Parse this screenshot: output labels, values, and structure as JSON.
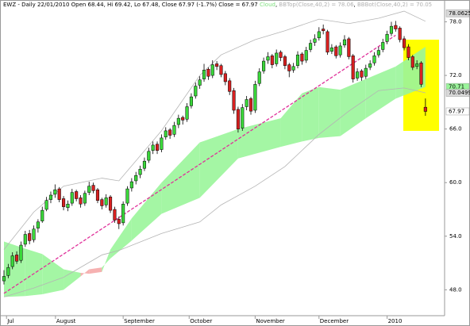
{
  "chart_data": {
    "type": "candlestick",
    "title": "EWZ - Daily 22/01/2010 Open 68.44, Hi 69.42, Lo 67.48, Close 67.97 (-1.7%) Close = 67.97",
    "legend": [
      "Cloud",
      "BBTop(Close,40,2) = 78.06",
      "BBBot(Close,40,2) = 70.05"
    ],
    "colors": {
      "up": "#3ad83a",
      "down": "#d82020",
      "cloud_up": "#9af59a",
      "cloud_down": "#f5a8a8",
      "bollinger": "#b4b4b4",
      "trendline": "#e0309a"
    },
    "xlim": [
      -0.93,
      103.5
    ],
    "xticks": [
      {
        "value": 0.6,
        "label": "Jul"
      },
      {
        "value": 12.1,
        "label": "August"
      },
      {
        "value": 28,
        "label": "September"
      },
      {
        "value": 43.5,
        "label": "October"
      },
      {
        "value": 59,
        "label": "November"
      },
      {
        "value": 74,
        "label": "December"
      },
      {
        "value": 90,
        "label": "2010"
      }
    ],
    "ylim": [
      45.1,
      80.0
    ],
    "yticks": [
      {
        "value": 48,
        "label": "48.0"
      },
      {
        "value": 54,
        "label": "54.0"
      },
      {
        "value": 60,
        "label": "60.0"
      },
      {
        "value": 66,
        "label": "66.0"
      },
      {
        "value": 72,
        "label": "72.0"
      },
      {
        "value": 78,
        "label": "78.0"
      }
    ],
    "ohlc": [
      [
        49.0,
        50.2,
        48.6,
        49.5
      ],
      [
        49.6,
        50.9,
        49.3,
        50.5
      ],
      [
        50.6,
        52.2,
        50.3,
        51.8
      ],
      [
        51.9,
        52.3,
        50.9,
        51.2
      ],
      [
        51.3,
        53.4,
        51.0,
        53.0
      ],
      [
        53.1,
        54.6,
        52.8,
        54.2
      ],
      [
        54.3,
        54.7,
        53.1,
        53.5
      ],
      [
        53.6,
        55.2,
        53.3,
        54.8
      ],
      [
        54.9,
        55.9,
        54.4,
        55.6
      ],
      [
        55.7,
        57.3,
        55.5,
        56.9
      ],
      [
        57.0,
        58.4,
        56.8,
        58.0
      ],
      [
        58.1,
        59.0,
        57.7,
        58.6
      ],
      [
        58.7,
        59.8,
        58.3,
        59.2
      ],
      [
        59.3,
        59.5,
        57.8,
        58.1
      ],
      [
        58.2,
        58.5,
        56.9,
        57.3
      ],
      [
        57.2,
        58.0,
        56.8,
        57.6
      ],
      [
        57.7,
        59.3,
        57.4,
        58.9
      ],
      [
        59.0,
        59.2,
        57.9,
        58.2
      ],
      [
        58.3,
        58.6,
        57.2,
        57.6
      ],
      [
        57.7,
        59.1,
        57.4,
        58.8
      ],
      [
        58.9,
        60.1,
        58.6,
        59.6
      ],
      [
        59.7,
        60.0,
        58.8,
        59.1
      ],
      [
        59.2,
        59.4,
        57.7,
        58.0
      ],
      [
        58.1,
        58.3,
        57.0,
        57.4
      ],
      [
        57.5,
        58.7,
        57.2,
        58.3
      ],
      [
        58.4,
        58.6,
        56.6,
        56.9
      ],
      [
        57.0,
        57.3,
        55.5,
        55.8
      ],
      [
        55.9,
        56.2,
        54.8,
        55.4
      ],
      [
        55.5,
        57.9,
        55.2,
        57.6
      ],
      [
        57.7,
        59.6,
        57.4,
        59.3
      ],
      [
        59.4,
        60.5,
        59.0,
        60.1
      ],
      [
        60.2,
        61.2,
        59.8,
        60.8
      ],
      [
        60.9,
        61.9,
        60.5,
        61.5
      ],
      [
        61.6,
        62.8,
        61.3,
        62.4
      ],
      [
        62.5,
        63.9,
        62.2,
        63.5
      ],
      [
        63.6,
        64.6,
        63.2,
        64.2
      ],
      [
        64.3,
        64.6,
        63.2,
        63.6
      ],
      [
        63.7,
        65.4,
        63.4,
        65.0
      ],
      [
        65.1,
        66.2,
        64.8,
        65.8
      ],
      [
        65.9,
        66.1,
        64.9,
        65.3
      ],
      [
        65.4,
        66.8,
        65.1,
        66.4
      ],
      [
        66.5,
        67.6,
        66.1,
        67.2
      ],
      [
        67.3,
        67.5,
        66.5,
        67.0
      ],
      [
        67.1,
        68.9,
        66.8,
        68.5
      ],
      [
        68.6,
        70.0,
        68.3,
        69.6
      ],
      [
        69.7,
        71.2,
        69.4,
        70.8
      ],
      [
        70.9,
        71.9,
        70.5,
        71.5
      ],
      [
        71.6,
        73.3,
        71.3,
        72.6
      ],
      [
        72.7,
        72.9,
        71.5,
        71.9
      ],
      [
        72.0,
        73.7,
        71.7,
        73.2
      ],
      [
        73.3,
        73.6,
        72.6,
        73.0
      ],
      [
        73.1,
        73.3,
        71.8,
        72.1
      ],
      [
        72.2,
        72.5,
        70.9,
        71.3
      ],
      [
        71.4,
        71.7,
        69.8,
        70.2
      ],
      [
        70.3,
        70.6,
        67.7,
        68.1
      ],
      [
        68.2,
        68.5,
        65.6,
        66.0
      ],
      [
        66.1,
        68.8,
        65.8,
        68.4
      ],
      [
        68.5,
        69.7,
        68.1,
        69.3
      ],
      [
        69.4,
        69.6,
        67.6,
        68.0
      ],
      [
        68.1,
        71.4,
        67.8,
        71.0
      ],
      [
        71.1,
        72.8,
        70.8,
        72.4
      ],
      [
        72.5,
        74.0,
        72.2,
        73.6
      ],
      [
        73.7,
        74.6,
        73.3,
        74.1
      ],
      [
        74.2,
        74.4,
        72.8,
        73.2
      ],
      [
        73.3,
        74.9,
        73.0,
        74.5
      ],
      [
        74.6,
        74.8,
        73.6,
        74.0
      ],
      [
        74.1,
        74.3,
        72.7,
        73.1
      ],
      [
        73.2,
        73.4,
        71.8,
        72.5
      ],
      [
        72.6,
        73.4,
        72.3,
        73.0
      ],
      [
        73.1,
        74.7,
        72.8,
        74.3
      ],
      [
        74.4,
        74.6,
        73.2,
        73.6
      ],
      [
        73.7,
        75.2,
        73.4,
        74.8
      ],
      [
        74.9,
        76.0,
        74.6,
        75.6
      ],
      [
        75.7,
        76.6,
        75.3,
        76.1
      ],
      [
        76.2,
        77.4,
        75.9,
        76.9
      ],
      [
        77.2,
        77.7,
        76.6,
        77.0
      ],
      [
        76.9,
        77.1,
        74.3,
        74.6
      ],
      [
        74.7,
        75.5,
        74.4,
        75.1
      ],
      [
        75.2,
        75.4,
        73.9,
        74.2
      ],
      [
        74.3,
        75.7,
        74.0,
        75.3
      ],
      [
        75.4,
        76.5,
        75.1,
        76.0
      ],
      [
        76.1,
        76.3,
        73.8,
        74.1
      ],
      [
        74.2,
        74.4,
        71.2,
        71.6
      ],
      [
        71.7,
        72.8,
        71.4,
        72.4
      ],
      [
        72.5,
        72.7,
        71.4,
        71.8
      ],
      [
        71.9,
        73.2,
        71.6,
        72.8
      ],
      [
        72.9,
        73.7,
        72.6,
        73.3
      ],
      [
        73.4,
        74.6,
        73.1,
        74.2
      ],
      [
        74.3,
        75.2,
        74.0,
        74.8
      ],
      [
        74.9,
        76.1,
        74.6,
        75.7
      ],
      [
        75.8,
        77.0,
        75.5,
        76.6
      ],
      [
        76.7,
        78.0,
        76.4,
        77.5
      ],
      [
        77.6,
        78.1,
        76.9,
        77.2
      ],
      [
        77.3,
        77.5,
        75.7,
        76.0
      ],
      [
        76.1,
        76.4,
        74.8,
        75.1
      ],
      [
        75.2,
        75.5,
        73.7,
        74.0
      ],
      [
        74.1,
        74.3,
        72.6,
        72.9
      ],
      [
        73.0,
        73.7,
        72.7,
        73.3
      ],
      [
        73.4,
        73.6,
        70.7,
        71.0
      ],
      [
        68.44,
        69.42,
        67.48,
        67.97
      ]
    ],
    "cloud": {
      "x": [
        0,
        5,
        9,
        14,
        18,
        20,
        23,
        25,
        30,
        37,
        46,
        55,
        65,
        70,
        74,
        79,
        85,
        92,
        99
      ],
      "span_a": [
        53.4,
        52.6,
        52.0,
        50.3,
        49.9,
        49.8,
        50.0,
        52.5,
        56.0,
        60.0,
        64.5,
        66.0,
        67.2,
        70.0,
        70.7,
        70.4,
        71.6,
        73.0,
        75.2
      ],
      "span_b": [
        47.2,
        47.3,
        47.5,
        48.0,
        49.5,
        50.3,
        50.5,
        51.5,
        53.5,
        56.5,
        58.3,
        62.7,
        64.0,
        64.6,
        65.0,
        65.2,
        67.2,
        69.4,
        70.71
      ]
    },
    "bollinger": {
      "x": [
        0,
        7,
        14,
        23,
        27,
        37,
        46,
        51,
        59,
        66,
        74,
        81,
        88,
        94,
        99
      ],
      "top": [
        52.5,
        56.7,
        59.6,
        60.5,
        60.2,
        65.8,
        72.0,
        74.3,
        76.0,
        77.0,
        78.3,
        77.8,
        78.4,
        79.2,
        78.0625
      ],
      "bottom": [
        47.2,
        48.2,
        49.4,
        51.9,
        52.4,
        54.3,
        55.6,
        57.5,
        59.6,
        61.8,
        65.4,
        68.0,
        70.3,
        70.6,
        70.0499
      ]
    },
    "trendline": {
      "x": [
        0,
        92
      ],
      "values": [
        47.6,
        76.5
      ]
    }
  }
}
